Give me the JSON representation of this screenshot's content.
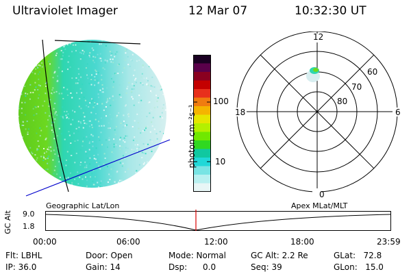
{
  "header": {
    "instrument": "Ultraviolet Imager",
    "date": "12 Mar 07",
    "time": "10:32:30 UT"
  },
  "colorbar": {
    "unit_label": "photon cm⁻²s⁻¹",
    "ticks": [
      {
        "value": 100,
        "label": "100"
      },
      {
        "value": 10,
        "label": "10"
      }
    ],
    "colors": [
      "#1a0022",
      "#5a004a",
      "#8a0020",
      "#c40000",
      "#e8301c",
      "#f07c10",
      "#f5b400",
      "#e6e600",
      "#b4f000",
      "#70e800",
      "#30d820",
      "#10c8a0",
      "#20d8d8",
      "#78e4e4",
      "#b8f0f0",
      "#e8f6f6"
    ]
  },
  "polar_plot": {
    "mlt_labels": {
      "top": "12",
      "bottom": "0",
      "left": "18",
      "right": "6"
    },
    "lat_labels": [
      "60",
      "70",
      "80"
    ]
  },
  "timeline": {
    "left_caption": "Geographic Lat/Lon",
    "right_caption": "Apex MLat/MLT",
    "axis_title": "GC Alt",
    "y_ticks": [
      "9.0",
      "1.8"
    ],
    "x_ticks": [
      "00:00",
      "06:00",
      "12:00",
      "18:00",
      "23:59"
    ],
    "marker_color": "#d80000"
  },
  "status": {
    "flt": "Flt: LBHL",
    "ip": "IP: 36.0",
    "door": "Door: Open",
    "gain": "Gain: 14",
    "mode": "Mode: Normal",
    "dsp": "Dsp:      0.0",
    "gc_alt": "GC Alt: 2.2 Re",
    "seq": "Seq: 39",
    "glat": "GLat:   72.8",
    "glon": "GLon:   15.0"
  },
  "colors": {
    "earth_green": "#6cd820",
    "earth_cyan": "#28d8c8",
    "earth_pale": "#d8eeee",
    "grid_line": "#0000cc"
  }
}
